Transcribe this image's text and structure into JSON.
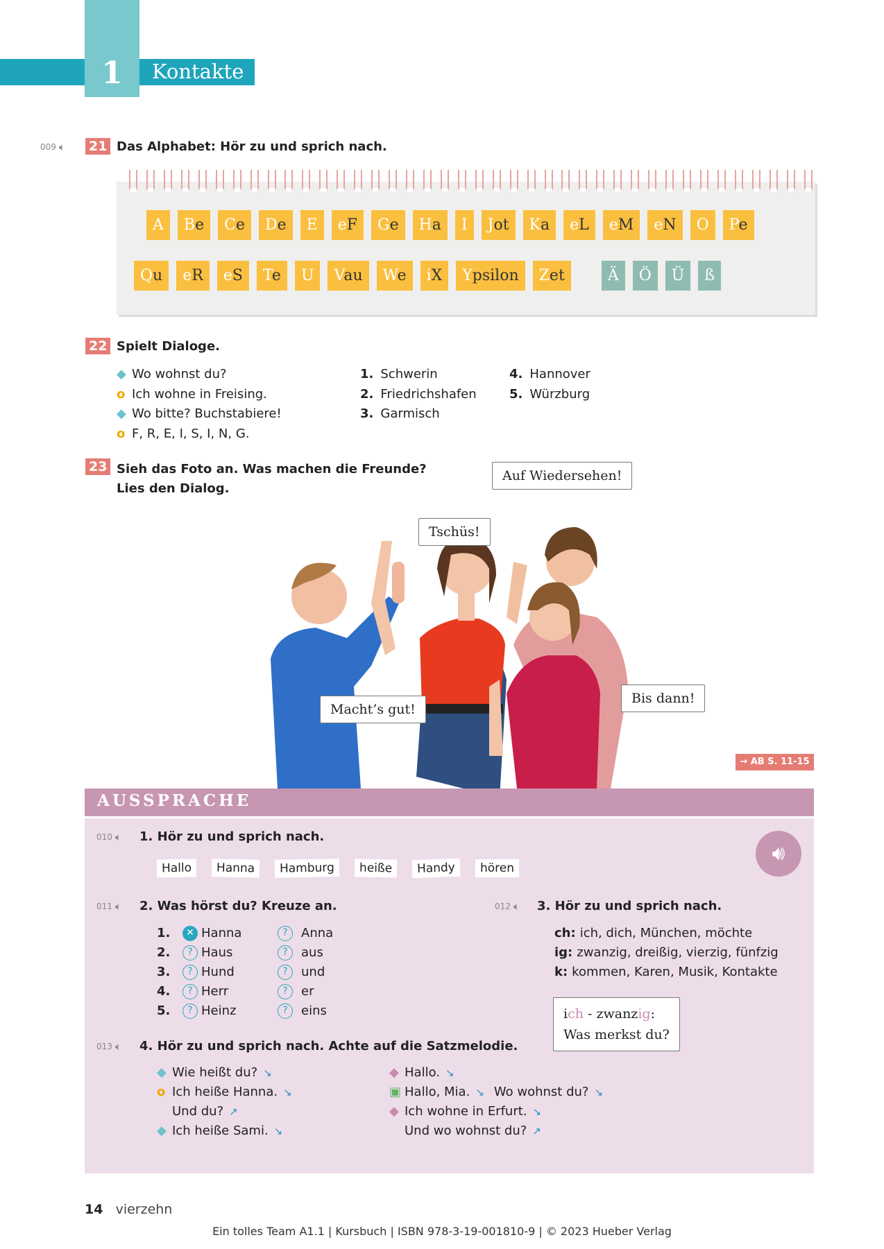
{
  "chapter": {
    "number": "1",
    "title": "Kontakte"
  },
  "ex21": {
    "track": "009",
    "number": "21",
    "title": "Das Alphabet: Hör zu und sprich nach.",
    "row1": [
      [
        "A",
        ""
      ],
      [
        "B",
        "e"
      ],
      [
        "C",
        "e"
      ],
      [
        "D",
        "e"
      ],
      [
        "E",
        ""
      ],
      [
        "e",
        "F"
      ],
      [
        "G",
        "e"
      ],
      [
        "H",
        "a"
      ],
      [
        "I",
        ""
      ],
      [
        "J",
        "ot"
      ],
      [
        "K",
        "a"
      ],
      [
        "e",
        "L"
      ],
      [
        "e",
        "M"
      ],
      [
        "e",
        "N"
      ],
      [
        "O",
        ""
      ],
      [
        "P",
        "e"
      ]
    ],
    "row2": [
      [
        "Q",
        "u"
      ],
      [
        "e",
        "R"
      ],
      [
        "e",
        "S"
      ],
      [
        "T",
        "e"
      ],
      [
        "U",
        ""
      ],
      [
        "V",
        "au"
      ],
      [
        "W",
        "e"
      ],
      [
        "i",
        "X"
      ],
      [
        "Y",
        "psilon"
      ],
      [
        "Z",
        "et"
      ]
    ],
    "umlauts": [
      "Ä",
      "Ö",
      "Ü",
      "ß"
    ]
  },
  "ex22": {
    "number": "22",
    "title": "Spielt Dialoge.",
    "dialog": [
      "Wo wohnst du?",
      "Ich wohne in Freising.",
      "Wo bitte? Buchstabiere!",
      "F, R, E, I, S, I, N, G."
    ],
    "cities": [
      {
        "n": "1.",
        "c": "Schwerin"
      },
      {
        "n": "2.",
        "c": "Friedrichshafen"
      },
      {
        "n": "3.",
        "c": "Garmisch"
      },
      {
        "n": "4.",
        "c": "Hannover"
      },
      {
        "n": "5.",
        "c": "Würzburg"
      }
    ]
  },
  "ex23": {
    "number": "23",
    "title1": "Sieh das Foto an. Was machen die Freunde?",
    "title2": "Lies den Dialog.",
    "bubbles": {
      "auf": "Auf Wiedersehen!",
      "tschues": "Tschüs!",
      "macht": "Macht’s gut!",
      "bis": "Bis dann!"
    },
    "ref": "→ AB S. 11-15"
  },
  "aussprache": {
    "title": "AUSSPRACHE",
    "ex1": {
      "track": "010",
      "title": "1. Hör zu und sprich nach.",
      "words": [
        "Hallo",
        "Hanna",
        "Hamburg",
        "heiße",
        "Handy",
        "hören"
      ]
    },
    "ex2": {
      "track": "011",
      "title": "2. Was hörst du? Kreuze an.",
      "rows": [
        {
          "n": "1.",
          "a": "Hanna",
          "b": "Anna",
          "checked": "a"
        },
        {
          "n": "2.",
          "a": "Haus",
          "b": "aus"
        },
        {
          "n": "3.",
          "a": "Hund",
          "b": "und"
        },
        {
          "n": "4.",
          "a": "Herr",
          "b": "er"
        },
        {
          "n": "5.",
          "a": "Heinz",
          "b": "eins"
        }
      ]
    },
    "ex3": {
      "track": "012",
      "title": "3. Hör zu und sprich nach.",
      "lines": [
        {
          "k": "ch:",
          "v": "ich, dich, München, möchte"
        },
        {
          "k": "ig:",
          "v": "zwanzig, dreißig, vierzig, fünfzig"
        },
        {
          "k": "k:",
          "v": "kommen, Karen, Musik, Kontakte"
        }
      ],
      "bubble": {
        "a1": "i",
        "a2": "ch",
        "a3": " - zwanz",
        "a4": "ig",
        "a5": ":",
        "line2": "Was merkst du?"
      }
    },
    "ex4": {
      "track": "013",
      "title": "4. Hör zu und sprich nach. Achte auf die Satzmelodie.",
      "left": [
        {
          "t": "Wie heißt du?",
          "a": "↘",
          "b": "diamond"
        },
        {
          "t": "Ich heiße Hanna.",
          "a": "↘",
          "b": "ring"
        },
        {
          "t": "Und du?",
          "a": "↗",
          "b": ""
        },
        {
          "t": "Ich heiße Sami.",
          "a": "↘",
          "b": "diamond"
        }
      ],
      "right": [
        {
          "t": "Hallo.",
          "a": "↘",
          "b": "pink-diamond"
        },
        {
          "t": "Hallo, Mia.",
          "a": "↘",
          "t2": "Wo wohnst du?",
          "a2": "↘",
          "b": "green-square"
        },
        {
          "t": "Ich wohne in Erfurt.",
          "a": "↘",
          "b": "pink-diamond"
        },
        {
          "t": "Und wo wohnst du?",
          "a": "↗",
          "b": ""
        }
      ]
    }
  },
  "footer": {
    "page": "14",
    "page_word": "vierzehn",
    "imprint": "Ein tolles Team A1.1 | Kursbuch | ISBN 978-3-19-001810-9 | © 2023 Hueber Verlag"
  },
  "colors": {
    "teal": "#1fa5bb",
    "light_teal": "#78c8ce",
    "badge": "#e57c74",
    "tile": "#fbbf3f",
    "umlaut_tile": "#8fbcb2",
    "aussprache": "#c796b2",
    "panel": "#eddde8"
  }
}
